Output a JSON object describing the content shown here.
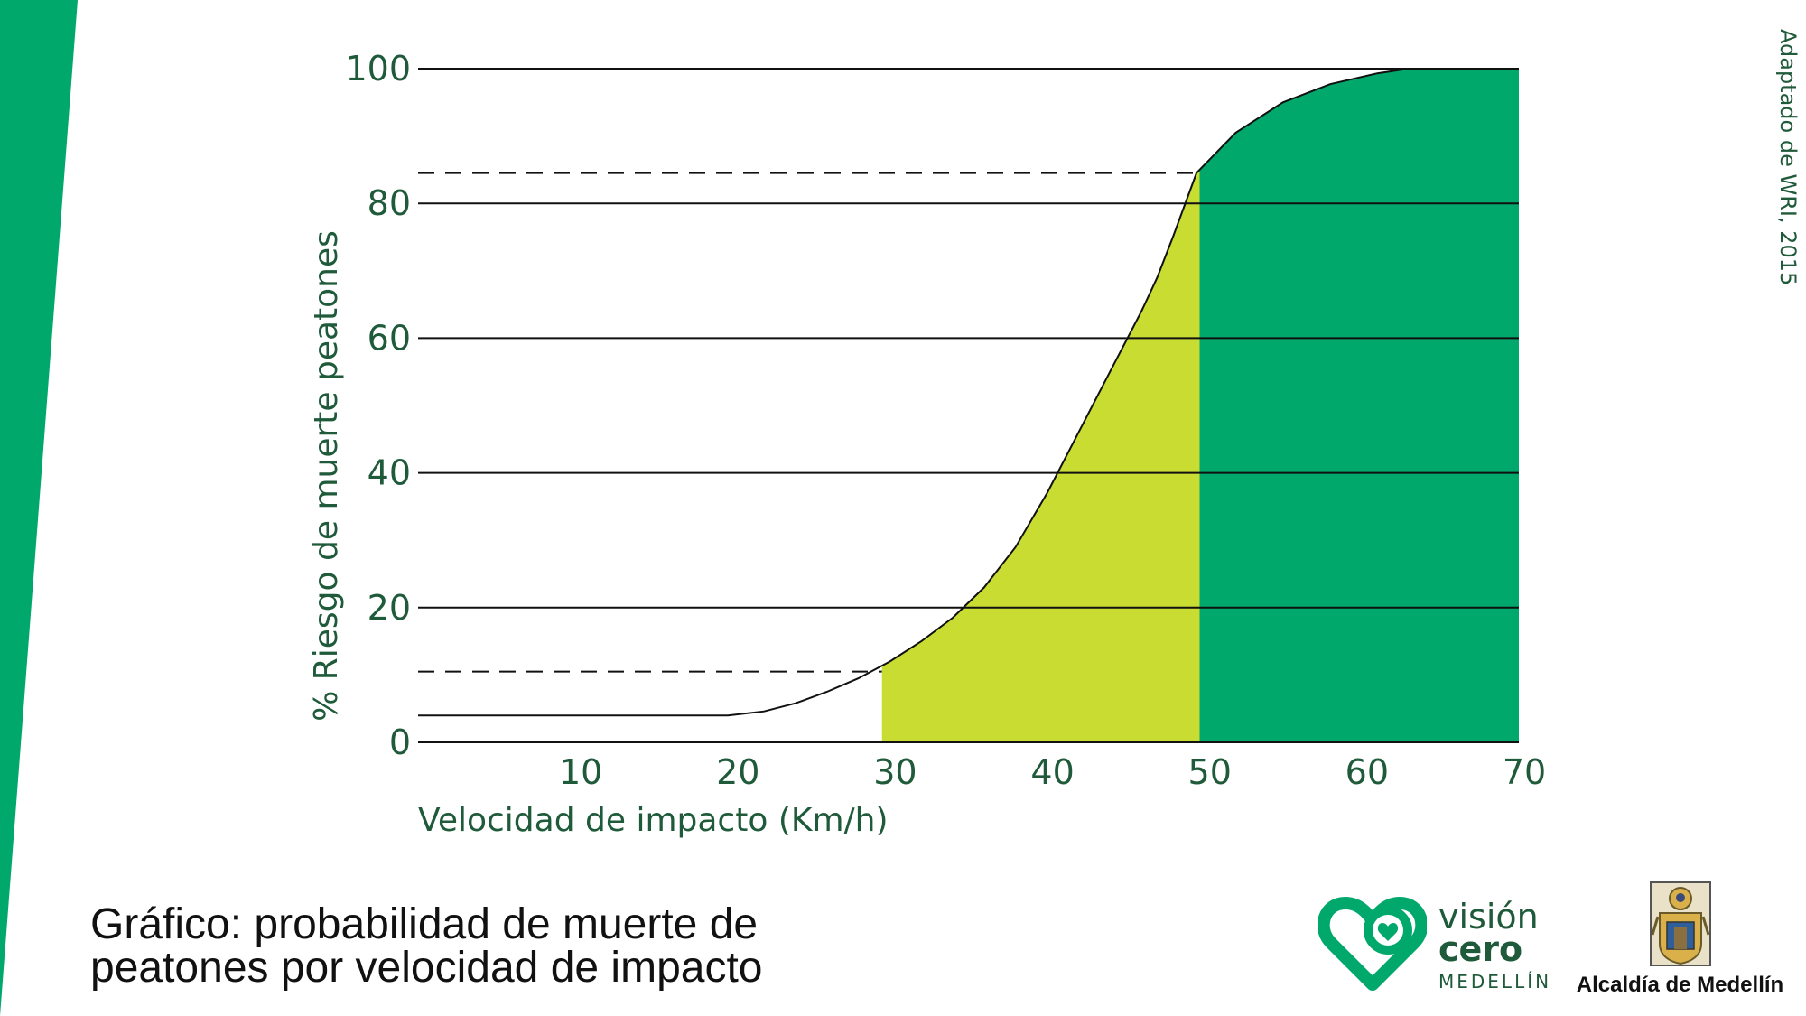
{
  "colors": {
    "brand_green": "#00a86b",
    "lime": "#c8dc32",
    "text_green": "#1f5a3a",
    "line": "#111111"
  },
  "caption": {
    "line1": "Gráfico: probabilidad de muerte de",
    "line2": "peatones por velocidad de impacto"
  },
  "source_note": "Adaptado de WRI, 2015",
  "logos": {
    "vision_cero": {
      "line1": "visión",
      "line2": "cero",
      "line3": "MEDELLÍN",
      "icon": "heart-icon"
    },
    "alcaldia": {
      "label": "Alcaldía de Medellín",
      "icon": "coat-of-arms-icon"
    }
  },
  "chart_data": {
    "type": "area",
    "title": "",
    "xlabel": "Velocidad de impacto (Km/h)",
    "ylabel": "% Riesgo de muerte peatones",
    "xlim": [
      0,
      70
    ],
    "ylim": [
      0,
      100
    ],
    "x_ticks": [
      "10",
      "20",
      "30",
      "40",
      "50",
      "60",
      "70"
    ],
    "x_tick_values": [
      10,
      20,
      30,
      40,
      50,
      60,
      70
    ],
    "y_ticks": [
      "0",
      "20",
      "40",
      "60",
      "80",
      "100"
    ],
    "y_tick_values": [
      0,
      20,
      40,
      60,
      80,
      100
    ],
    "grid": true,
    "curve": {
      "x": [
        0,
        10,
        19.7,
        22,
        24,
        26,
        28,
        30,
        32,
        34,
        36,
        38,
        40,
        42,
        44,
        46,
        47,
        48,
        49.5,
        52,
        55,
        58,
        61,
        63,
        70
      ],
      "y": [
        4,
        4,
        4,
        4.6,
        5.8,
        7.5,
        9.5,
        12,
        15,
        18.5,
        23,
        29,
        37,
        46,
        55,
        64,
        69,
        75,
        84.5,
        90.5,
        95,
        97.7,
        99.3,
        100,
        100
      ]
    },
    "bands": [
      {
        "name": "",
        "x_from": 29.5,
        "x_to": 49.7,
        "color": "#c8dc32"
      },
      {
        "name": "",
        "x_from": 49.7,
        "x_to": 70,
        "color": "#00a86b"
      }
    ],
    "reference_lines": [
      {
        "y": 10.5,
        "x_to": 29.5,
        "style": "dashed"
      },
      {
        "y": 84.5,
        "x_to": 49.7,
        "style": "dashed"
      }
    ]
  }
}
